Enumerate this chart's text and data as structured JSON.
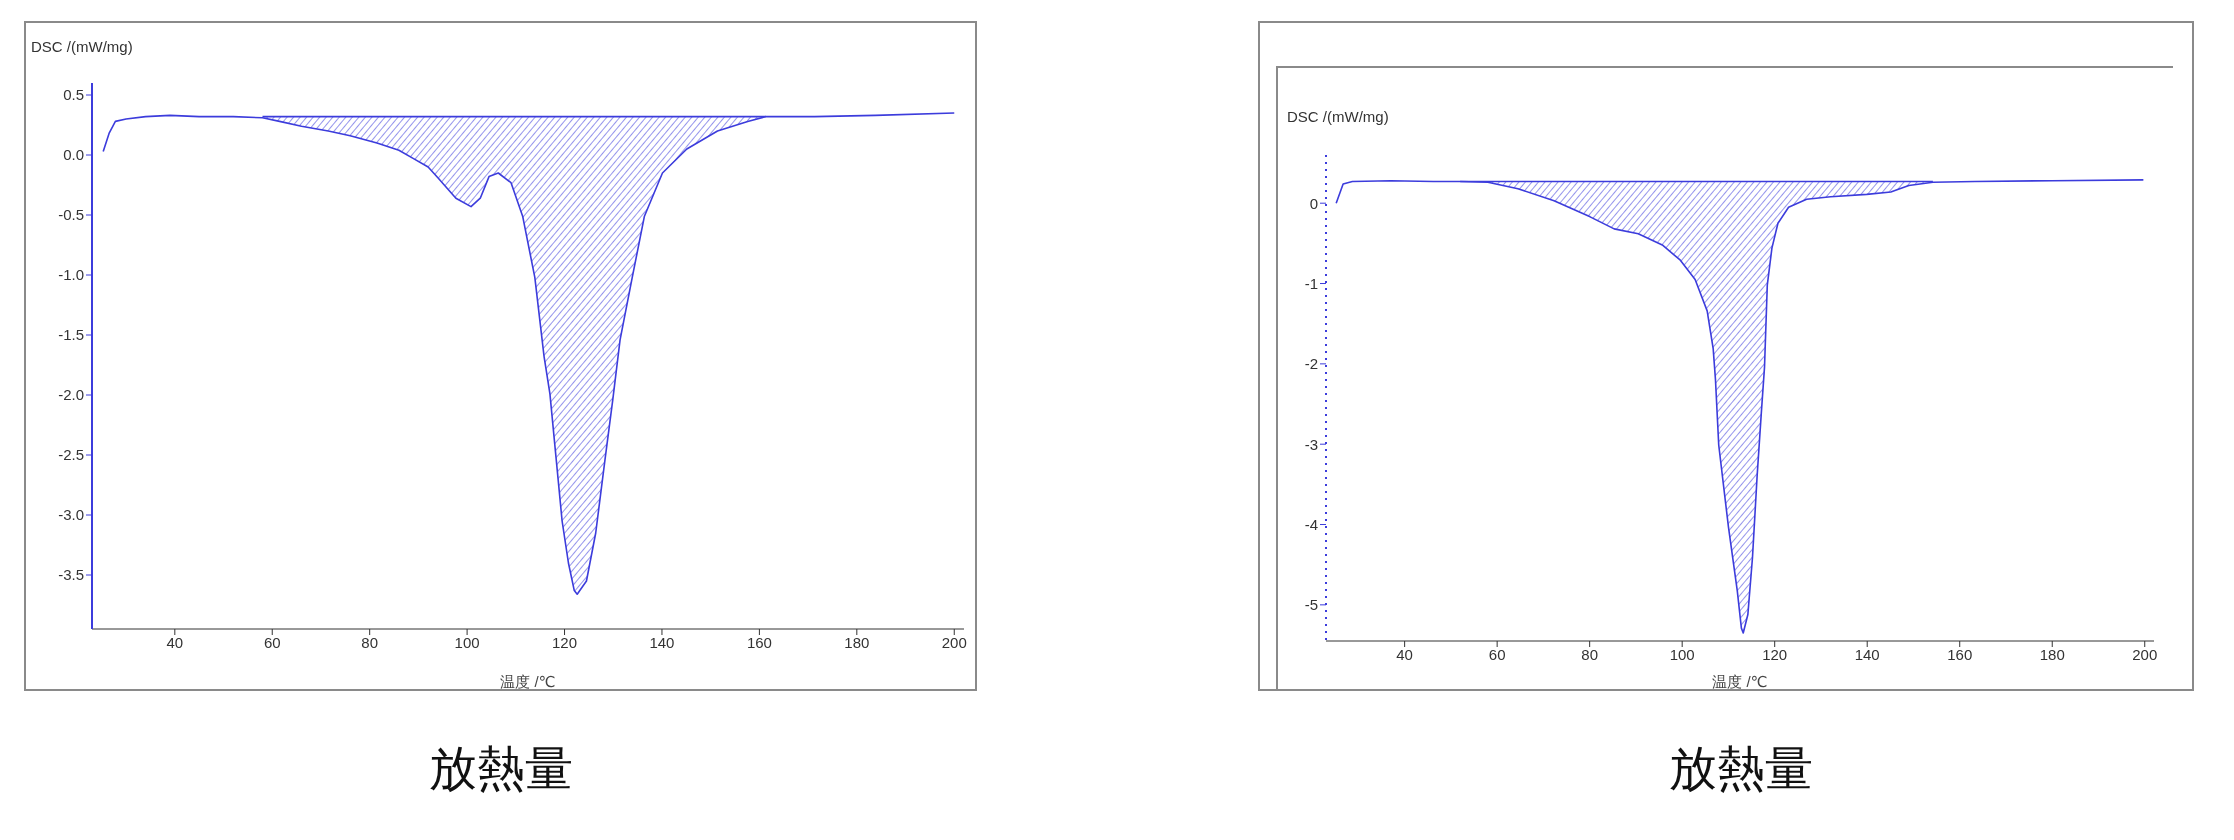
{
  "chart_data": [
    {
      "type": "line",
      "title": "放熱量",
      "xlabel": "温度 /℃",
      "ylabel": "DSC /(mW/mg)",
      "x": [
        25.3,
        26.5,
        27.8,
        30,
        34,
        39,
        45,
        52,
        58,
        61.5,
        66,
        71.5,
        76,
        81.5,
        86,
        89,
        92,
        94,
        97.7,
        100.8,
        102.7,
        104.5,
        106.4,
        109,
        111.4,
        113.9,
        115.8,
        117,
        118.3,
        119.5,
        120.8,
        122,
        122.6,
        124.5,
        126.4,
        128.3,
        129.9,
        131.4,
        133.9,
        136.4,
        140.1,
        145.1,
        151.4,
        157.6,
        161.3,
        171.3,
        183.8,
        200
      ],
      "series": [
        {
          "color": "#3c3cdc",
          "values": [
            0.03,
            0.18,
            0.28,
            0.3,
            0.32,
            0.33,
            0.32,
            0.32,
            0.31,
            0.28,
            0.24,
            0.2,
            0.16,
            0.1,
            0.04,
            -0.03,
            -0.1,
            -0.19,
            -0.36,
            -0.43,
            -0.36,
            -0.18,
            -0.15,
            -0.23,
            -0.51,
            -1.02,
            -1.68,
            -1.99,
            -2.54,
            -3.05,
            -3.4,
            -3.63,
            -3.66,
            -3.55,
            -3.15,
            -2.54,
            -2.04,
            -1.54,
            -1.02,
            -0.51,
            -0.15,
            0.05,
            0.2,
            0.28,
            0.32,
            0.32,
            0.33,
            0.35
          ],
          "lower": [
            null,
            null,
            null,
            null,
            null,
            null,
            null,
            null,
            0.31,
            0.28,
            0.24,
            0.2,
            0.16,
            0.1,
            0.04,
            -0.03,
            -0.1,
            -0.19,
            -0.36,
            -0.43,
            -0.36,
            -0.18,
            -0.15,
            -0.23,
            -0.51,
            -1.02,
            -1.68,
            -1.99,
            -2.54,
            -3.05,
            -3.4,
            -3.63,
            -3.66,
            -3.55,
            -3.15,
            -2.54,
            -2.04,
            -1.54,
            -1.02,
            -0.51,
            -0.15,
            0.05,
            0.2,
            0.28,
            0.32,
            null,
            null,
            null
          ],
          "upper": [
            null,
            null,
            null,
            null,
            null,
            null,
            null,
            null,
            0.32,
            0.32,
            0.32,
            0.32,
            0.32,
            0.32,
            0.32,
            0.32,
            0.32,
            0.32,
            0.32,
            0.32,
            0.32,
            0.32,
            0.32,
            0.32,
            0.32,
            0.32,
            0.32,
            0.32,
            0.32,
            0.32,
            0.32,
            0.32,
            0.32,
            0.32,
            0.32,
            0.32,
            0.32,
            0.32,
            0.32,
            0.32,
            0.32,
            0.32,
            0.32,
            0.32,
            0.32,
            null,
            null,
            null
          ]
        },
        {
          "type": "line",
          "color": "#3c3cdc",
          "x": [
            58,
            161.3
          ],
          "values": [
            0.32,
            0.32
          ]
        }
      ],
      "xlim": [
        23,
        202
      ],
      "xticks": [
        40,
        60,
        80,
        100,
        120,
        140,
        160,
        180,
        200
      ],
      "ylim": [
        -3.95,
        0.6
      ],
      "yticks": [
        -3.5,
        {
          "value": -3,
          "label": "-3.0"
        },
        -2.5,
        {
          "value": -2,
          "label": "-2.0"
        },
        -1.5,
        {
          "value": -1,
          "label": "-1.0"
        },
        -0.5,
        {
          "value": 0,
          "label": "0.0"
        },
        0.5
      ]
    },
    {
      "type": "line",
      "title": "放熱量",
      "xlabel": "温度 /℃",
      "ylabel": "DSC /(mW/mg)",
      "x": [
        25.2,
        26.7,
        28.7,
        37,
        46.2,
        52,
        58,
        64.5,
        72.3,
        80.1,
        85.3,
        90.5,
        95.7,
        99.6,
        102.8,
        105.4,
        106.7,
        107.2,
        107.9,
        110,
        111.9,
        112.8,
        113.2,
        114.2,
        115.2,
        116.2,
        117.1,
        117.8,
        118.4,
        119.4,
        120.7,
        123,
        126.9,
        132.1,
        139.9,
        145.1,
        149,
        154.2,
        163.3,
        180,
        199.7
      ],
      "series": [
        {
          "color": "#3c3cdc",
          "values": [
            0.0,
            0.24,
            0.27,
            0.28,
            0.27,
            0.27,
            0.26,
            0.18,
            0.03,
            -0.17,
            -0.32,
            -0.38,
            -0.52,
            -0.71,
            -0.95,
            -1.34,
            -1.81,
            -2.2,
            -3.01,
            -4.03,
            -4.82,
            -5.29,
            -5.35,
            -5.12,
            -4.41,
            -3.4,
            -2.62,
            -2.04,
            -1.02,
            -0.56,
            -0.25,
            -0.05,
            0.05,
            0.08,
            0.11,
            0.14,
            0.22,
            0.26,
            0.27,
            0.28,
            0.29
          ],
          "lower": [
            null,
            null,
            null,
            null,
            null,
            0.27,
            0.26,
            0.18,
            0.03,
            -0.17,
            -0.32,
            -0.38,
            -0.52,
            -0.71,
            -0.95,
            -1.34,
            -1.81,
            -2.2,
            -3.01,
            -4.03,
            -4.82,
            -5.29,
            -5.35,
            -5.12,
            -4.41,
            -3.4,
            -2.62,
            -2.04,
            -1.02,
            -0.56,
            -0.25,
            -0.05,
            0.05,
            0.08,
            0.11,
            0.14,
            0.22,
            0.26,
            null,
            null,
            null
          ],
          "upper": [
            null,
            null,
            null,
            null,
            null,
            0.27,
            0.27,
            0.27,
            0.27,
            0.27,
            0.27,
            0.27,
            0.27,
            0.27,
            0.27,
            0.27,
            0.27,
            0.27,
            0.27,
            0.27,
            0.27,
            0.27,
            0.27,
            0.27,
            0.27,
            0.27,
            0.27,
            0.27,
            0.27,
            0.27,
            0.27,
            0.27,
            0.27,
            0.27,
            0.27,
            0.27,
            0.27,
            0.27,
            null,
            null,
            null
          ]
        },
        {
          "type": "line",
          "color": "#3c3cdc",
          "x": [
            52,
            154.2
          ],
          "values": [
            0.27,
            0.27
          ]
        }
      ],
      "xlim": [
        23,
        202
      ],
      "xticks": [
        40,
        60,
        80,
        100,
        120,
        140,
        160,
        180,
        200
      ],
      "ylim": [
        -5.45,
        0.6
      ],
      "yticks": [
        -5,
        -4,
        -3,
        -2,
        -1,
        0
      ]
    }
  ]
}
